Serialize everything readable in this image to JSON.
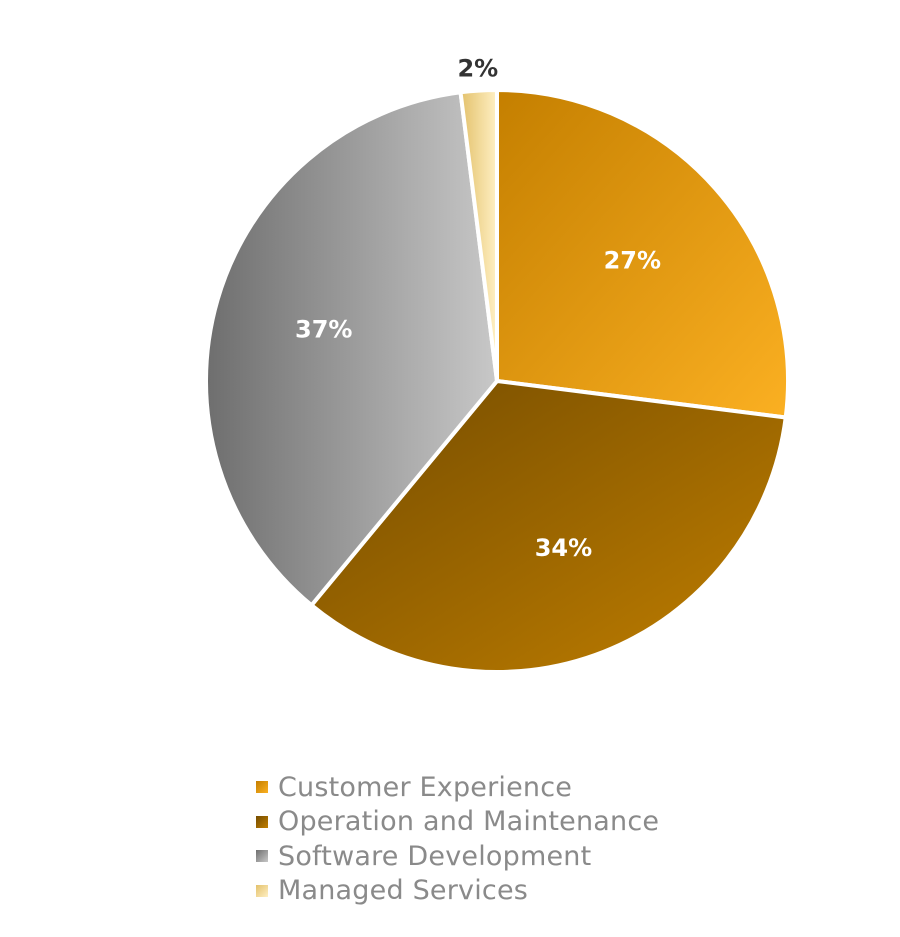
{
  "chart_data": {
    "type": "pie",
    "title": "",
    "start_angle_deg": 0,
    "direction": "clockwise",
    "legend_position": "bottom",
    "series": [
      {
        "name": "Customer Experience",
        "value": 27,
        "label": "27%",
        "color_dark": "#c47f00",
        "color_light": "#fbb022",
        "label_color": "#ffffff"
      },
      {
        "name": "Operation and Maintenance",
        "value": 34,
        "label": "34%",
        "color_dark": "#744c00",
        "color_light": "#c17f00",
        "label_color": "#ffffff"
      },
      {
        "name": "Software Development",
        "value": 37,
        "label": "37%",
        "color_dark": "#6e6e6e",
        "color_light": "#c8c8c8",
        "label_color": "#ffffff"
      },
      {
        "name": "Managed Services",
        "value": 2,
        "label": "2%",
        "color_dark": "#e3c16b",
        "color_light": "#fff0c4",
        "label_color": "#333333"
      }
    ]
  }
}
